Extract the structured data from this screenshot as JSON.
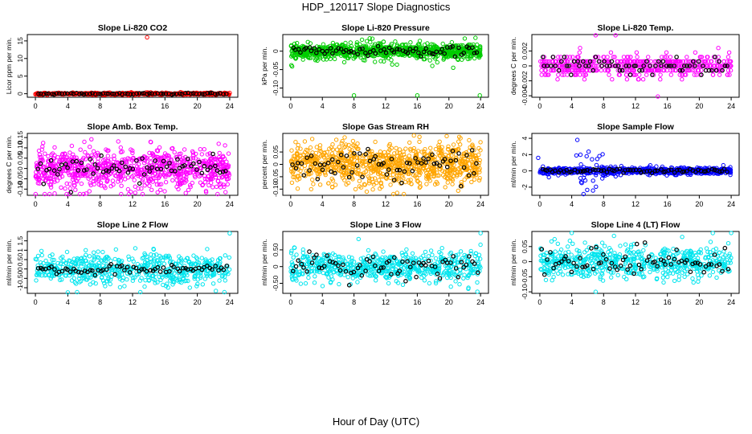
{
  "page": {
    "title": "HDP_120117  Slope Diagnostics",
    "x_caption": "Hour of Day (UTC)"
  },
  "chart_data": [
    {
      "type": "scatter",
      "title": "Slope Li-820 CO2",
      "ylabel": "Licor ppm per min.",
      "xlabel": "",
      "xlim": [
        -1,
        25
      ],
      "xticks": [
        0,
        4,
        8,
        12,
        16,
        20,
        24
      ],
      "ylim": [
        -1.0,
        16.8
      ],
      "yticks": [
        0,
        5,
        10,
        15
      ],
      "color": "#ff0000",
      "n_points": 520,
      "base_sd": 0.12,
      "cluster_sd": 0.2,
      "black_sd": 0.12,
      "series": [
        {
          "name": "all",
          "values_summary": "near 0 (approx. -0.3 to 0.3)"
        },
        {
          "name": "black",
          "values_summary": "near 0"
        }
      ],
      "outliers": [
        [
          13.8,
          16.0
        ]
      ]
    },
    {
      "type": "scatter",
      "title": "Slope Li-820 Pressure",
      "ylabel": "kPa per min.",
      "xlabel": "",
      "xlim": [
        -1,
        25
      ],
      "xticks": [
        0,
        4,
        8,
        12,
        16,
        20,
        24
      ],
      "ylim": [
        -0.125,
        0.045
      ],
      "yticks": [
        -0.1,
        -0.05,
        0.0
      ],
      "color": "#00cc00",
      "n_points": 950,
      "base_sd": 0.009,
      "cluster_sd": 0.015,
      "black_sd": 0.007,
      "series": [
        {
          "name": "all",
          "values_summary": "approx. -0.02 to 0.03"
        },
        {
          "name": "black",
          "values_summary": "approx. -0.01 to 0.01"
        }
      ],
      "outliers": [
        [
          8.0,
          -0.12
        ],
        [
          16.0,
          -0.12
        ],
        [
          23.9,
          -0.12
        ]
      ]
    },
    {
      "type": "scatter",
      "title": "Slope Li-820 Temp.",
      "ylabel": "degrees C per min.",
      "xlabel": "",
      "xlim": [
        -1,
        25
      ],
      "xticks": [
        0,
        4,
        8,
        12,
        16,
        20,
        24
      ],
      "ylim": [
        -0.0042,
        0.0042
      ],
      "yticks": [
        -0.004,
        -0.002,
        0.0,
        0.002
      ],
      "color": "#ff00ff",
      "quantized": 0.0006,
      "n_points": 520,
      "base_sd": 0.0007,
      "cluster_sd": 0.0009,
      "black_sd": 0.0006,
      "series": [
        {
          "name": "all",
          "values_summary": "quantized levels -0.0012 .. 0.0012"
        },
        {
          "name": "black",
          "values_summary": "quantized levels near 0"
        }
      ],
      "outliers": [
        [
          7.0,
          0.0041
        ],
        [
          9.5,
          0.0041
        ],
        [
          14.8,
          -0.0041
        ]
      ]
    },
    {
      "type": "scatter",
      "title": "Slope Amb. Box Temp.",
      "ylabel": "degrees C per min.",
      "xlabel": "",
      "xlim": [
        -1,
        25
      ],
      "xticks": [
        0,
        4,
        8,
        12,
        16,
        20,
        24
      ],
      "ylim": [
        -0.13,
        0.17
      ],
      "yticks": [
        -0.1,
        -0.05,
        0.0,
        0.05,
        0.1,
        0.15
      ],
      "color": "#ff00ff",
      "n_points": 820,
      "base_sd": 0.045,
      "cluster_sd": 0.05,
      "black_sd": 0.035,
      "series": [
        {
          "name": "all",
          "values_summary": "approx. -0.12 to 0.16"
        },
        {
          "name": "black",
          "values_summary": "approx. -0.08 to 0.13"
        }
      ],
      "outliers": []
    },
    {
      "type": "scatter",
      "title": "Slope Gas Stream RH",
      "ylabel": "percent per min.",
      "xlabel": "",
      "xlim": [
        -1,
        25
      ],
      "xticks": [
        0,
        4,
        8,
        12,
        16,
        20,
        24
      ],
      "ylim": [
        -0.125,
        0.125
      ],
      "yticks": [
        -0.1,
        -0.05,
        0.0,
        0.05
      ],
      "color": "#ffa500",
      "n_points": 900,
      "base_sd": 0.04,
      "cluster_sd": 0.045,
      "black_sd": 0.03,
      "series": [
        {
          "name": "all",
          "values_summary": "approx. -0.12 to 0.12"
        },
        {
          "name": "black",
          "values_summary": "approx. -0.07 to 0.07"
        }
      ],
      "outliers": []
    },
    {
      "type": "scatter",
      "title": "Slope Sample Flow",
      "ylabel": "ml/min per min.",
      "xlabel": "",
      "xlim": [
        -1,
        25
      ],
      "xticks": [
        0,
        4,
        8,
        12,
        16,
        20,
        24
      ],
      "ylim": [
        -3.0,
        4.6
      ],
      "yticks": [
        -2,
        0,
        2,
        4
      ],
      "color": "#0000ff",
      "n_points": 700,
      "base_sd": 0.18,
      "cluster_sd": 0.25,
      "black_sd": 0.12,
      "burst": {
        "x_range": [
          4.5,
          8.0
        ],
        "sd": 1.4,
        "n": 40
      },
      "series": [
        {
          "name": "all",
          "values_summary": "approx. -0.5 to 0.5, burst to +-2.5 near 5-8 h"
        },
        {
          "name": "black",
          "values_summary": "near 0"
        }
      ],
      "outliers": [
        [
          4.7,
          3.8
        ],
        [
          -0.2,
          1.6
        ]
      ]
    },
    {
      "type": "scatter",
      "title": "Slope Line 2 Flow",
      "ylabel": "ml/min per min.",
      "xlabel": "",
      "xlim": [
        -1,
        25
      ],
      "xticks": [
        0,
        4,
        8,
        12,
        16,
        20,
        24
      ],
      "ylim": [
        -1.3,
        2.0
      ],
      "yticks": [
        -1.0,
        -0.5,
        0.0,
        0.5,
        1.0,
        1.5
      ],
      "color": "#00e5ee",
      "n_points": 600,
      "base_sd": 0.4,
      "cluster_sd": 0.45,
      "black_sd": 0.12,
      "series": [
        {
          "name": "all",
          "values_summary": "approx. -1.0 to 1.5"
        },
        {
          "name": "black",
          "values_summary": "approx. -0.2 to 0.3"
        }
      ],
      "outliers": [
        [
          4.0,
          -1.25
        ],
        [
          24.0,
          1.9
        ]
      ]
    },
    {
      "type": "scatter",
      "title": "Slope Line 3 Flow",
      "ylabel": "ml/min per min.",
      "xlabel": "",
      "xlim": [
        -1,
        25
      ],
      "xticks": [
        0,
        4,
        8,
        12,
        16,
        20,
        24
      ],
      "ylim": [
        -0.8,
        1.05
      ],
      "yticks": [
        -0.5,
        0.0,
        0.5
      ],
      "color": "#00e5ee",
      "n_points": 600,
      "base_sd": 0.22,
      "cluster_sd": 0.25,
      "black_sd": 0.18,
      "series": [
        {
          "name": "all",
          "values_summary": "approx. -0.6 to 0.8"
        },
        {
          "name": "black",
          "values_summary": "approx. -0.4 to 0.4"
        }
      ],
      "outliers": [
        [
          24.0,
          1.0
        ],
        [
          23.6,
          -0.75
        ]
      ]
    },
    {
      "type": "scatter",
      "title": "Slope Line 4 (LT) Flow",
      "ylabel": "ml/min per min.",
      "xlabel": "",
      "xlim": [
        -1,
        25
      ],
      "xticks": [
        0,
        4,
        8,
        12,
        16,
        20,
        24
      ],
      "ylim": [
        -0.105,
        0.1
      ],
      "yticks": [
        -0.1,
        -0.05,
        0.0,
        0.05
      ],
      "color": "#00e5ee",
      "n_points": 600,
      "base_sd": 0.025,
      "cluster_sd": 0.03,
      "black_sd": 0.025,
      "series": [
        {
          "name": "all",
          "values_summary": "approx. -0.09 to 0.09"
        },
        {
          "name": "black",
          "values_summary": "approx. -0.07 to 0.05"
        }
      ],
      "outliers": [
        [
          4.0,
          0.095
        ],
        [
          24.0,
          0.095
        ],
        [
          7.0,
          -0.1
        ]
      ]
    }
  ]
}
